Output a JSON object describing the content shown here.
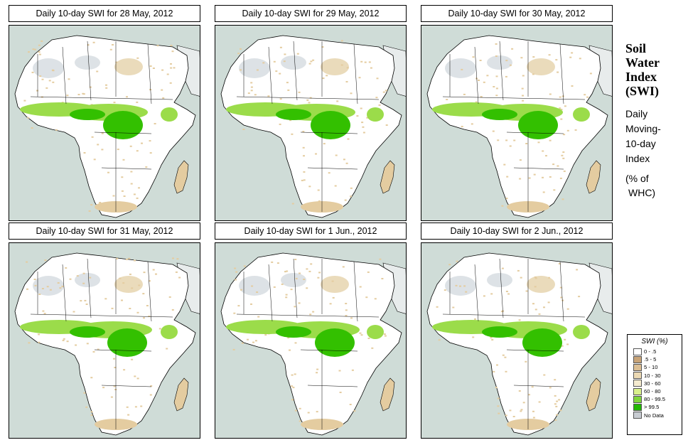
{
  "side": {
    "title_lines": [
      "Soil",
      "Water",
      "Index",
      "(SWI)"
    ],
    "sub_lines": [
      "Daily",
      "Moving-",
      "10-day",
      "Index"
    ],
    "unit_lines": [
      "(% of",
      "WHC)"
    ]
  },
  "panels": [
    {
      "title": "Daily 10-day SWI for  28 May, 2012"
    },
    {
      "title": "Daily 10-day SWI for  29 May, 2012"
    },
    {
      "title": "Daily 10-day SWI for  30 May, 2012"
    },
    {
      "title": "Daily 10-day SWI for  31 May, 2012"
    },
    {
      "title": "Daily 10-day SWI for  1 Jun., 2012"
    },
    {
      "title": "Daily 10-day SWI for  2 Jun., 2012"
    }
  ],
  "legend": {
    "title": "SWI (%)",
    "items": [
      {
        "label": "0 - .5",
        "color": "#ffffff"
      },
      {
        "label": ".5 - 5",
        "color": "#c8a478"
      },
      {
        "label": "5 - 10",
        "color": "#dcbf94"
      },
      {
        "label": "10 - 30",
        "color": "#ecd9b3"
      },
      {
        "label": "30 - 60",
        "color": "#f5ebcf"
      },
      {
        "label": "60 - 80",
        "color": "#d9f08c"
      },
      {
        "label": "80 - 99.5",
        "color": "#7fd63a"
      },
      {
        "label": "> 99.5",
        "color": "#22b800"
      },
      {
        "label": "No Data",
        "color": "#c8ccd2"
      }
    ]
  },
  "colors": {
    "ocean": "#cfdcd7",
    "land": "#ffffff",
    "dry": "#e4cca0",
    "wet_light": "#9bdc4a",
    "wet": "#33c000",
    "desert_nodata": "#dde2e6"
  }
}
